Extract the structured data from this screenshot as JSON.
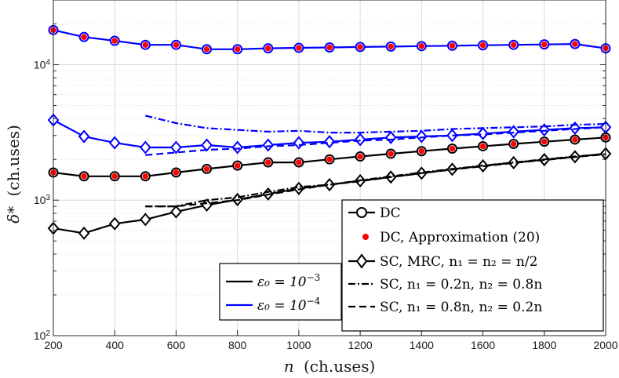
{
  "chart_data": {
    "type": "line",
    "x_scale": "linear",
    "y_scale": "log",
    "xlabel_var": "n",
    "xlabel_unit": "(ch.uses)",
    "ylabel_var": "δ*",
    "ylabel_unit": "(ch.uses)",
    "xlim": [
      200,
      2000
    ],
    "ylim": [
      100,
      30000
    ],
    "x_ticks": [
      200,
      400,
      600,
      800,
      1000,
      1200,
      1400,
      1600,
      1800,
      2000
    ],
    "y_ticks": [
      {
        "value": 100,
        "base": "10",
        "exp": "2"
      },
      {
        "value": 1000,
        "base": "10",
        "exp": "3"
      },
      {
        "value": 10000,
        "base": "10",
        "exp": "4"
      }
    ],
    "grid": true,
    "colors": {
      "eps3": "#000000",
      "eps4": "#0000ff",
      "approx": "#ff0000"
    },
    "series": [
      {
        "name": "DC, ε0=1e-4",
        "group": "eps4",
        "style": "solid",
        "marker": "circle",
        "x": [
          200,
          300,
          400,
          500,
          600,
          700,
          800,
          900,
          1000,
          1100,
          1200,
          1300,
          1400,
          1500,
          1600,
          1700,
          1800,
          1900,
          2000
        ],
        "y": [
          18000,
          16000,
          15000,
          14000,
          14000,
          13000,
          13000,
          13200,
          13300,
          13400,
          13500,
          13600,
          13700,
          13800,
          13900,
          14000,
          14100,
          14200,
          13200
        ]
      },
      {
        "name": "SC, MRC, ε0=1e-4",
        "group": "eps4",
        "style": "solid",
        "marker": "diamond",
        "x": [
          200,
          300,
          400,
          500,
          600,
          700,
          800,
          900,
          1000,
          1100,
          1200,
          1300,
          1400,
          1500,
          1600,
          1700,
          1800,
          1900,
          2000
        ],
        "y": [
          3900,
          2950,
          2650,
          2450,
          2450,
          2550,
          2450,
          2550,
          2650,
          2700,
          2800,
          2900,
          2950,
          3000,
          3100,
          3200,
          3300,
          3400,
          3450
        ]
      },
      {
        "name": "SC, n1=0.2n, ε0=1e-4",
        "group": "eps4",
        "style": "dashdot",
        "marker": "none",
        "x": [
          500,
          600,
          700,
          800,
          900,
          1000,
          1100,
          1200,
          1300,
          1400,
          1500,
          1600,
          1700,
          1800,
          1900,
          2000
        ],
        "y": [
          4200,
          3700,
          3400,
          3300,
          3200,
          3250,
          3150,
          3150,
          3200,
          3250,
          3350,
          3400,
          3450,
          3500,
          3600,
          3650
        ]
      },
      {
        "name": "SC, n1=0.8n, ε0=1e-4",
        "group": "eps4",
        "style": "dashed",
        "marker": "none",
        "x": [
          500,
          600,
          700,
          800,
          900,
          1000,
          1100,
          1200,
          1300,
          1400,
          1500,
          1600,
          1700,
          1800,
          1900,
          2000
        ],
        "y": [
          2150,
          2250,
          2350,
          2400,
          2500,
          2550,
          2650,
          2750,
          2800,
          2900,
          3000,
          3050,
          3150,
          3250,
          3350,
          3450
        ]
      },
      {
        "name": "DC, ε0=1e-3",
        "group": "eps3",
        "style": "solid",
        "marker": "circle",
        "x": [
          200,
          300,
          400,
          500,
          600,
          700,
          800,
          900,
          1000,
          1100,
          1200,
          1300,
          1400,
          1500,
          1600,
          1700,
          1800,
          1900,
          2000
        ],
        "y": [
          1600,
          1500,
          1500,
          1500,
          1600,
          1700,
          1800,
          1900,
          1900,
          2000,
          2100,
          2200,
          2300,
          2400,
          2500,
          2600,
          2700,
          2800,
          2900
        ]
      },
      {
        "name": "SC, MRC, ε0=1e-3",
        "group": "eps3",
        "style": "solid",
        "marker": "diamond",
        "x": [
          200,
          300,
          400,
          500,
          600,
          700,
          800,
          900,
          1000,
          1100,
          1200,
          1300,
          1400,
          1500,
          1600,
          1700,
          1800,
          1900,
          2000
        ],
        "y": [
          620,
          570,
          670,
          720,
          820,
          920,
          1010,
          1110,
          1220,
          1300,
          1390,
          1480,
          1580,
          1690,
          1790,
          1890,
          1990,
          2090,
          2200
        ]
      },
      {
        "name": "SC, n1=0.2n, ε0=1e-3",
        "group": "eps3",
        "style": "dashdot",
        "marker": "none",
        "x": [
          500,
          600,
          700,
          800,
          900,
          1000,
          1100,
          1200,
          1300,
          1400,
          1500,
          1600,
          1700,
          1800,
          1900,
          2000
        ],
        "y": [
          900,
          900,
          1000,
          1050,
          1150,
          1250,
          1300,
          1400,
          1500,
          1600,
          1700,
          1800,
          1900,
          2000,
          2100,
          2200
        ]
      },
      {
        "name": "SC, n1=0.8n, ε0=1e-3",
        "group": "eps3",
        "style": "dashed",
        "marker": "none",
        "x": [
          500,
          600,
          700,
          800,
          900,
          1000,
          1100,
          1200,
          1300,
          1400,
          1500,
          1600,
          1700,
          1800,
          1900,
          2000
        ],
        "y": [
          900,
          900,
          950,
          1000,
          1100,
          1200,
          1300,
          1380,
          1480,
          1580,
          1680,
          1780,
          1880,
          1980,
          2080,
          2180
        ]
      },
      {
        "name": "DC, Approximation (20), ε0=1e-4",
        "group": "approx",
        "style": "points",
        "marker": "dot",
        "x": [
          200,
          300,
          400,
          500,
          600,
          700,
          800,
          900,
          1000,
          1100,
          1200,
          1300,
          1400,
          1500,
          1600,
          1700,
          1800,
          1900,
          2000
        ],
        "y": [
          18000,
          16000,
          15000,
          14000,
          14000,
          13000,
          13000,
          13200,
          13300,
          13400,
          13500,
          13600,
          13700,
          13800,
          13900,
          14000,
          14100,
          14200,
          13200
        ]
      },
      {
        "name": "DC, Approximation (20), ε0=1e-3",
        "group": "approx",
        "style": "points",
        "marker": "dot",
        "x": [
          200,
          300,
          400,
          500,
          600,
          700,
          800,
          900,
          1000,
          1100,
          1200,
          1300,
          1400,
          1500,
          1600,
          1700,
          1800,
          1900,
          2000
        ],
        "y": [
          1600,
          1500,
          1500,
          1500,
          1600,
          1700,
          1800,
          1900,
          1900,
          2000,
          2100,
          2200,
          2300,
          2400,
          2500,
          2600,
          2700,
          2800,
          2900
        ]
      }
    ],
    "legend_methods": [
      {
        "label": "DC",
        "marker": "circle",
        "style": "solid"
      },
      {
        "label": "DC, Approximation (20)",
        "marker": "dot",
        "style": "points"
      },
      {
        "label": "SC, MRC, n₁ = n₂ = n/2",
        "marker": "diamond",
        "style": "solid"
      },
      {
        "label": "SC, n₁ = 0.2n, n₂ = 0.8n",
        "marker": "none",
        "style": "dashdot"
      },
      {
        "label": "SC, n₁ = 0.8n, n₂ = 0.2n",
        "marker": "none",
        "style": "dashed"
      }
    ],
    "legend_methods_placement": "bottom-right",
    "legend_eps": [
      {
        "label_var": "ε₀ = 10",
        "label_exp": "−3",
        "group": "eps3"
      },
      {
        "label_var": "ε₀ = 10",
        "label_exp": "−4",
        "group": "eps4"
      }
    ],
    "legend_eps_placement": "bottom-center"
  }
}
